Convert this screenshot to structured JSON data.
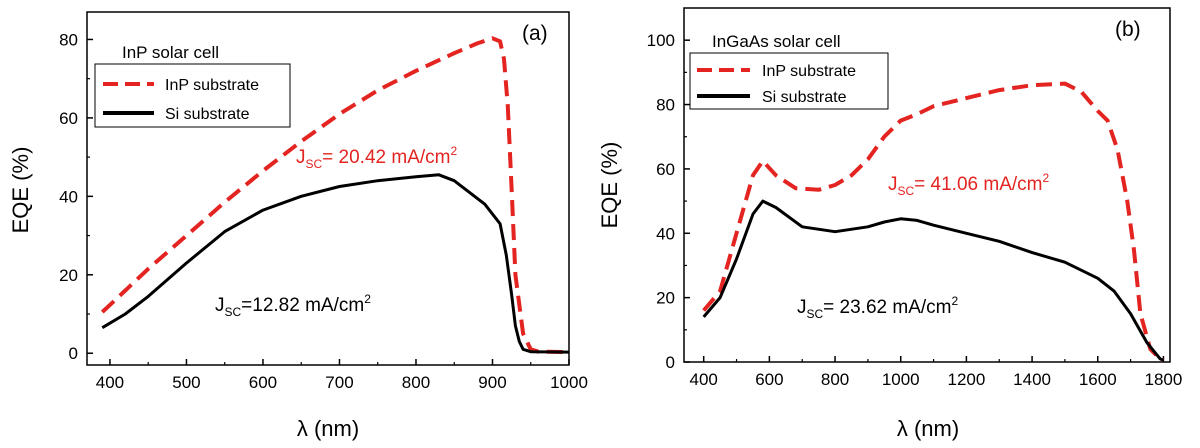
{
  "colors": {
    "inp_substrate": "#e32420",
    "si_substrate": "#000000",
    "axis": "#000000"
  },
  "chart_data": [
    {
      "type": "line",
      "panel_label": "(a)",
      "title": "InP solar cell",
      "xlabel": "λ (nm)",
      "ylabel": "EQE (%)",
      "xlim": [
        370,
        1000
      ],
      "ylim": [
        -3,
        87
      ],
      "xticks": [
        400,
        500,
        600,
        700,
        800,
        900,
        1000
      ],
      "yticks": [
        0,
        20,
        40,
        60,
        80
      ],
      "legend_placement": "top-left",
      "series": [
        {
          "name": "InP substrate",
          "style": "dashed",
          "color": "#e32420",
          "x": [
            390,
            420,
            450,
            500,
            550,
            600,
            650,
            700,
            750,
            800,
            850,
            880,
            900,
            910,
            915,
            920,
            925,
            930,
            940,
            950,
            960,
            1000
          ],
          "y": [
            10.5,
            16,
            21.5,
            30,
            38.5,
            46.5,
            54,
            61,
            67,
            72,
            76.5,
            79,
            80.3,
            79.5,
            75,
            63,
            42,
            20,
            5,
            1,
            0.4,
            0.3
          ]
        },
        {
          "name": "Si substrate",
          "style": "solid",
          "color": "#000000",
          "x": [
            390,
            420,
            450,
            500,
            550,
            600,
            650,
            700,
            750,
            800,
            830,
            850,
            870,
            890,
            910,
            918,
            925,
            930,
            935,
            940,
            950,
            1000
          ],
          "y": [
            6.5,
            10,
            14.5,
            23,
            31,
            36.5,
            40,
            42.5,
            44,
            45,
            45.5,
            44,
            41,
            38,
            33,
            25,
            15,
            7,
            3,
            1,
            0.4,
            0.3
          ]
        }
      ],
      "annotations": [
        {
          "main": "J",
          "sub": "SC",
          "value": "= 20.42 mA/cm",
          "sup": "2",
          "color": "red"
        },
        {
          "main": "J",
          "sub": "SC",
          "value": "=12.82 mA/cm",
          "sup": "2",
          "color": "black"
        }
      ]
    },
    {
      "type": "line",
      "panel_label": "(b)",
      "title": "InGaAs solar cell",
      "xlabel": "λ (nm)",
      "ylabel": "EQE (%)",
      "xlim": [
        340,
        1820
      ],
      "ylim": [
        0,
        110
      ],
      "xticks": [
        400,
        600,
        800,
        1000,
        1200,
        1400,
        1600,
        1800
      ],
      "yticks": [
        0,
        20,
        40,
        60,
        80,
        100
      ],
      "legend_placement": "top-left",
      "series": [
        {
          "name": "InP substrate",
          "style": "dashed",
          "color": "#e32420",
          "x": [
            400,
            450,
            500,
            550,
            580,
            620,
            680,
            750,
            800,
            850,
            900,
            950,
            1000,
            1050,
            1100,
            1200,
            1300,
            1400,
            1500,
            1550,
            1600,
            1630,
            1660,
            1690,
            1710,
            1730,
            1760,
            1790,
            1800
          ],
          "y": [
            16,
            22,
            40,
            58,
            62.5,
            58,
            54,
            53.5,
            55,
            58,
            63,
            70,
            75,
            77,
            79.5,
            82,
            84.5,
            86,
            86.5,
            84,
            78,
            75,
            66,
            50,
            35,
            15,
            4,
            1,
            0.5
          ]
        },
        {
          "name": "Si substrate",
          "style": "solid",
          "color": "#000000",
          "x": [
            400,
            450,
            500,
            550,
            580,
            620,
            700,
            800,
            900,
            950,
            1000,
            1050,
            1100,
            1200,
            1300,
            1400,
            1500,
            1600,
            1650,
            1700,
            1750,
            1790,
            1800
          ],
          "y": [
            14,
            20,
            32,
            46,
            50,
            48,
            42,
            40.5,
            42,
            43.5,
            44.5,
            44,
            42.5,
            40,
            37.5,
            34,
            31,
            26,
            22,
            15,
            6,
            1,
            0.5
          ]
        }
      ],
      "annotations": [
        {
          "main": "J",
          "sub": "SC",
          "value": "= 41.06 mA/cm",
          "sup": "2",
          "color": "red"
        },
        {
          "main": "J",
          "sub": "SC",
          "value": "= 23.62 mA/cm",
          "sup": "2",
          "color": "black"
        }
      ]
    }
  ]
}
